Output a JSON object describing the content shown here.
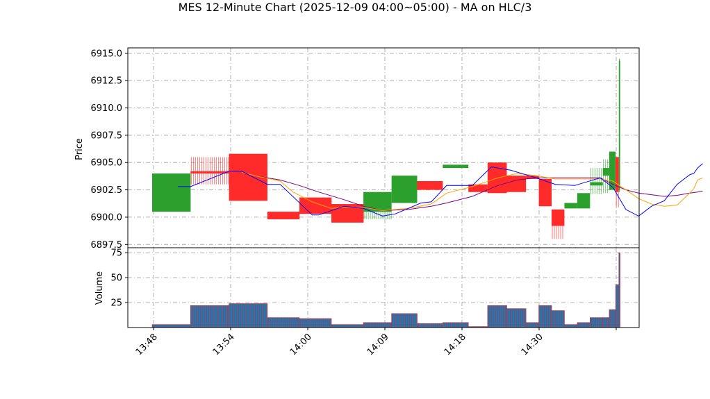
{
  "chart_data": {
    "type": "bar",
    "title": "MES 12-Minute Chart (2025-12-09 04:00~05:00) - MA on HLC/3",
    "price_panel": {
      "ylabel": "Price",
      "ylim": [
        6897.2,
        6915.5
      ],
      "yticks": [
        "6897.5",
        "6900.0",
        "6902.5",
        "6905.0",
        "6907.5",
        "6910.0",
        "6912.5",
        "6915.0"
      ],
      "ytick_values": [
        6897.5,
        6900.0,
        6902.5,
        6905.0,
        6907.5,
        6910.0,
        6912.5,
        6915.0
      ],
      "grid": true
    },
    "volume_panel": {
      "ylabel": "Volume",
      "ylim": [
        0,
        80
      ],
      "yticks": [
        "25",
        "50",
        "75"
      ],
      "ytick_values": [
        25,
        50,
        75
      ],
      "grid": true
    },
    "x_tick_labels": [
      "13:48",
      "13:54",
      "14:00",
      "14:09",
      "14:18",
      "14:30"
    ],
    "colors": {
      "up": "#2ca02c",
      "down": "#ff2a2a",
      "ma_fast": "#0000ff",
      "ma_mid": "#ffa500",
      "ma_slow": "#800080",
      "volume_fill": "#1f77b4",
      "volume_edge": "#d62728"
    },
    "bars": [
      {
        "t": "13:48",
        "w": 3,
        "open": 6900.5,
        "high": 6904.0,
        "low": 6900.5,
        "close": 6904.0,
        "volume": 3
      },
      {
        "t": "13:51",
        "w": 3,
        "open": 6904.2,
        "high": 6905.5,
        "low": 6903.0,
        "close": 6904.0,
        "volume": 22
      },
      {
        "t": "13:54",
        "w": 3,
        "open": 6905.8,
        "high": 6905.8,
        "low": 6901.5,
        "close": 6901.5,
        "volume": 24
      },
      {
        "t": "13:57",
        "w": 2.5,
        "open": 6900.5,
        "high": 6900.5,
        "low": 6899.8,
        "close": 6899.8,
        "volume": 10
      },
      {
        "t": "14:00",
        "w": 2.5,
        "open": 6901.8,
        "high": 6901.8,
        "low": 6900.3,
        "close": 6900.3,
        "volume": 9
      },
      {
        "t": "14:03",
        "w": 2.5,
        "open": 6901.2,
        "high": 6901.2,
        "low": 6899.5,
        "close": 6899.5,
        "volume": 3
      },
      {
        "t": "14:06",
        "w": 2.2,
        "open": 6900.5,
        "high": 6902.3,
        "low": 6899.8,
        "close": 6902.3,
        "volume": 5
      },
      {
        "t": "14:09",
        "w": 2,
        "open": 6901.3,
        "high": 6903.8,
        "low": 6901.3,
        "close": 6903.8,
        "volume": 14
      },
      {
        "t": "14:12",
        "w": 2,
        "open": 6903.3,
        "high": 6903.3,
        "low": 6902.5,
        "close": 6902.5,
        "volume": 4
      },
      {
        "t": "14:15",
        "w": 2,
        "open": 6904.5,
        "high": 6904.8,
        "low": 6904.5,
        "close": 6904.8,
        "volume": 5
      },
      {
        "t": "14:18",
        "w": 1.5,
        "open": 6903.0,
        "high": 6903.0,
        "low": 6902.3,
        "close": 6902.3,
        "volume": 1
      },
      {
        "t": "14:20",
        "w": 1.5,
        "open": 6905.0,
        "high": 6905.0,
        "low": 6902.2,
        "close": 6902.2,
        "volume": 22
      },
      {
        "t": "14:22",
        "w": 1.5,
        "open": 6903.8,
        "high": 6903.8,
        "low": 6902.3,
        "close": 6902.3,
        "volume": 19
      },
      {
        "t": "14:24",
        "w": 1,
        "open": 6903.8,
        "high": 6903.8,
        "low": 6903.5,
        "close": 6903.5,
        "volume": 5
      },
      {
        "t": "14:26",
        "w": 1,
        "open": 6903.5,
        "high": 6903.5,
        "low": 6901.0,
        "close": 6901.0,
        "volume": 22
      },
      {
        "t": "14:28",
        "w": 1,
        "open": 6900.7,
        "high": 6900.7,
        "low": 6898.0,
        "close": 6899.2,
        "volume": 17
      },
      {
        "t": "14:30",
        "w": 1,
        "open": 6900.8,
        "high": 6901.3,
        "low": 6900.8,
        "close": 6901.3,
        "volume": 3
      },
      {
        "t": "14:31",
        "w": 1,
        "open": 6900.8,
        "high": 6902.2,
        "low": 6900.8,
        "close": 6902.2,
        "volume": 5
      },
      {
        "t": "14:32",
        "w": 1,
        "open": 6902.9,
        "high": 6904.5,
        "low": 6902.1,
        "close": 6903.2,
        "volume": 10
      },
      {
        "t": "14:33",
        "w": 0.5,
        "open": 6903.8,
        "high": 6905.3,
        "low": 6902.2,
        "close": 6904.5,
        "volume": 10
      },
      {
        "t": "14:34",
        "w": 0.5,
        "open": 6902.5,
        "high": 6906.0,
        "low": 6902.5,
        "close": 6906.0,
        "volume": 18
      },
      {
        "t": "14:35",
        "w": 0.25,
        "open": 6905.5,
        "high": 6905.5,
        "low": 6900.9,
        "close": 6902.3,
        "volume": 43
      },
      {
        "t": "14:36",
        "w": 0.1,
        "open": 6902.5,
        "high": 6914.5,
        "low": 6902.3,
        "close": 6914.3,
        "volume": 75
      }
    ],
    "ma_fast": [
      [
        2,
        6902.8
      ],
      [
        3,
        6902.8
      ],
      [
        6,
        6904.2
      ],
      [
        7,
        6904.2
      ],
      [
        9,
        6903.0
      ],
      [
        10,
        6903.0
      ],
      [
        12.5,
        6900.2
      ],
      [
        13,
        6900.2
      ],
      [
        15,
        6901.0
      ],
      [
        16.5,
        6900.8
      ],
      [
        18,
        6900.1
      ],
      [
        19,
        6900.3
      ],
      [
        21,
        6901.3
      ],
      [
        21.8,
        6901.4
      ],
      [
        23,
        6902.9
      ],
      [
        25,
        6902.9
      ],
      [
        26.5,
        6904.6
      ],
      [
        28,
        6904.3
      ],
      [
        30,
        6903.6
      ],
      [
        31.5,
        6903.0
      ],
      [
        33,
        6902.9
      ],
      [
        35,
        6903.6
      ],
      [
        36,
        6902.7
      ],
      [
        37,
        6900.7
      ],
      [
        38,
        6900.1
      ],
      [
        39,
        6901.0
      ],
      [
        40,
        6901.5
      ],
      [
        41,
        6903.0
      ],
      [
        42,
        6903.9
      ],
      [
        42.3,
        6904.0
      ],
      [
        42.6,
        6904.5
      ],
      [
        43,
        6904.9
      ]
    ],
    "ma_mid": [
      [
        7,
        6904.1
      ],
      [
        8,
        6903.8
      ],
      [
        10,
        6903.3
      ],
      [
        11,
        6902.3
      ],
      [
        12.5,
        6901.4
      ],
      [
        14,
        6900.8
      ],
      [
        15,
        6900.9
      ],
      [
        16.5,
        6900.9
      ],
      [
        18,
        6900.6
      ],
      [
        20,
        6900.8
      ],
      [
        21.8,
        6901.2
      ],
      [
        23,
        6902.2
      ],
      [
        25,
        6902.8
      ],
      [
        27,
        6903.6
      ],
      [
        28.5,
        6904.0
      ],
      [
        30,
        6903.8
      ],
      [
        31.5,
        6903.5
      ],
      [
        33,
        6903.5
      ],
      [
        35,
        6903.5
      ],
      [
        36,
        6903.3
      ],
      [
        37,
        6902.5
      ],
      [
        38,
        6901.7
      ],
      [
        39,
        6901.2
      ],
      [
        40,
        6901.0
      ],
      [
        41,
        6901.1
      ],
      [
        41.8,
        6902.0
      ],
      [
        42.3,
        6902.6
      ],
      [
        42.6,
        6903.4
      ],
      [
        43,
        6903.6
      ]
    ],
    "ma_slow": [
      [
        8,
        6903.8
      ],
      [
        10,
        6903.4
      ],
      [
        11.5,
        6902.9
      ],
      [
        13,
        6902.3
      ],
      [
        15,
        6901.6
      ],
      [
        16.5,
        6901.0
      ],
      [
        18,
        6900.6
      ],
      [
        20,
        6900.7
      ],
      [
        21.8,
        6901.0
      ],
      [
        23,
        6901.3
      ],
      [
        25,
        6901.9
      ],
      [
        27,
        6902.9
      ],
      [
        28.5,
        6903.4
      ],
      [
        30,
        6903.6
      ],
      [
        31.5,
        6903.6
      ],
      [
        33,
        6903.6
      ],
      [
        35,
        6903.6
      ],
      [
        36,
        6903.0
      ],
      [
        37,
        6902.5
      ],
      [
        38,
        6902.2
      ],
      [
        40,
        6901.9
      ],
      [
        41,
        6902.0
      ],
      [
        42,
        6902.2
      ],
      [
        42.6,
        6902.3
      ],
      [
        43,
        6902.4
      ]
    ]
  }
}
